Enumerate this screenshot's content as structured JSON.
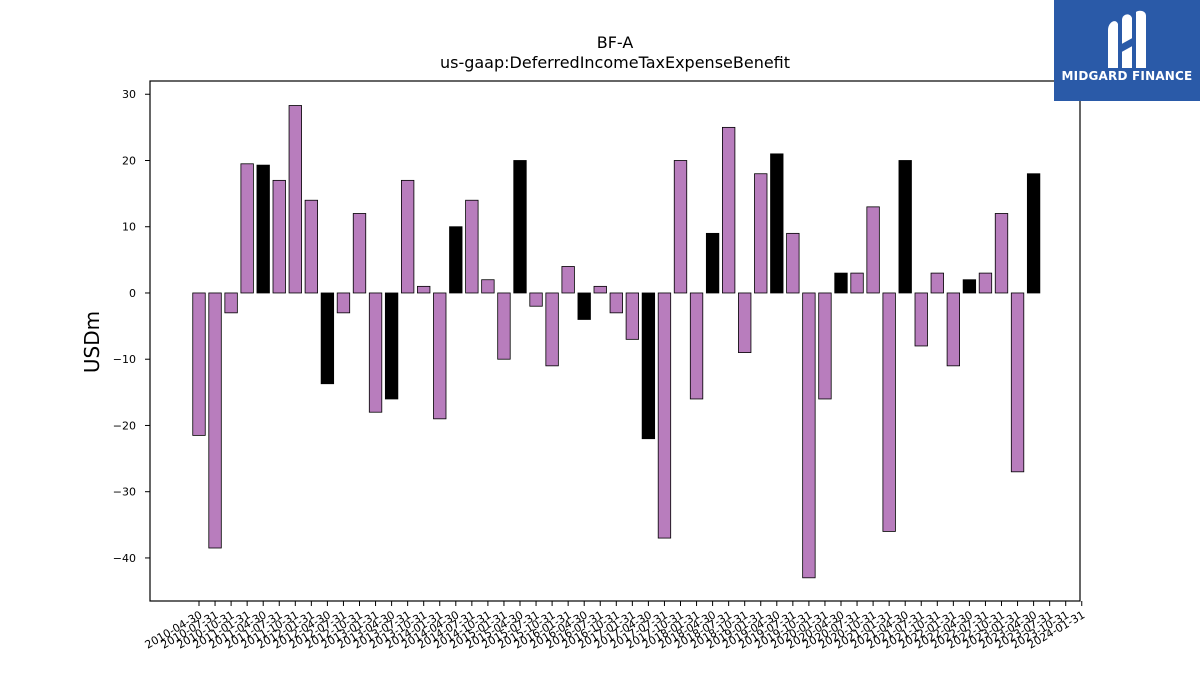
{
  "chart_data": {
    "type": "bar",
    "title": "BF-A",
    "subtitle": "us-gaap:DeferredIncomeTaxExpenseBenefit",
    "xlabel": "",
    "ylabel": "USDm",
    "ylim": [
      -46.5,
      32
    ],
    "yticks": [
      30,
      20,
      10,
      0,
      -10,
      -20,
      -30,
      -40
    ],
    "ytick_labels": [
      "30",
      "20",
      "10",
      "0",
      "−10",
      "−20",
      "−30",
      "−40"
    ],
    "grid": false,
    "colors": {
      "quarter": "#b87dbd",
      "annual": "#000000",
      "edge": "#000000"
    },
    "categories": [
      "2010-04-30",
      "2010-07-31",
      "2010-10-31",
      "2011-01-31",
      "2011-04-30",
      "2011-07-31",
      "2011-10-31",
      "2012-01-31",
      "2012-04-30",
      "2012-07-31",
      "2012-10-31",
      "2013-01-31",
      "2013-04-30",
      "2013-07-31",
      "2013-10-31",
      "2014-01-31",
      "2014-04-30",
      "2014-07-31",
      "2014-10-31",
      "2015-01-31",
      "2015-04-30",
      "2015-07-31",
      "2015-10-31",
      "2016-01-31",
      "2016-04-30",
      "2016-07-31",
      "2016-10-31",
      "2017-01-31",
      "2017-04-30",
      "2017-07-31",
      "2017-10-31",
      "2018-01-31",
      "2018-04-30",
      "2018-07-31",
      "2018-10-31",
      "2019-01-31",
      "2019-04-30",
      "2019-07-31",
      "2019-10-31",
      "2020-01-31",
      "2020-04-30",
      "2020-07-31",
      "2020-10-31",
      "2021-01-31",
      "2021-04-30",
      "2021-07-31",
      "2021-10-31",
      "2022-01-31",
      "2022-04-30",
      "2022-07-31",
      "2022-10-31",
      "2023-01-31",
      "2023-04-30",
      "2023-07-31",
      "2023-10-31",
      "2024-01-31"
    ],
    "values": [
      -21.5,
      -38.5,
      -3,
      19.5,
      19.3,
      17,
      28.3,
      14,
      -13.7,
      -3,
      12,
      -18,
      -16,
      17,
      1,
      -19,
      10,
      14,
      2,
      -10,
      20,
      -2,
      -11,
      4,
      -4,
      1,
      -3,
      -7,
      -22,
      -37,
      20,
      -16,
      9,
      25,
      -9,
      18,
      21,
      9,
      -43,
      -16,
      3,
      3,
      13,
      -36,
      20,
      -8,
      3,
      -11,
      2,
      3,
      12,
      -27,
      18,
      0,
      0,
      0
    ],
    "annual_flags": [
      0,
      0,
      0,
      0,
      1,
      0,
      0,
      0,
      1,
      0,
      0,
      0,
      1,
      0,
      0,
      0,
      1,
      0,
      0,
      0,
      1,
      0,
      0,
      0,
      1,
      0,
      0,
      0,
      1,
      0,
      0,
      0,
      1,
      0,
      0,
      0,
      1,
      0,
      0,
      0,
      1,
      0,
      0,
      0,
      1,
      0,
      0,
      0,
      1,
      0,
      0,
      0,
      1,
      0,
      0,
      0
    ]
  },
  "logo": {
    "text": "MIDGARD FINANCE"
  }
}
